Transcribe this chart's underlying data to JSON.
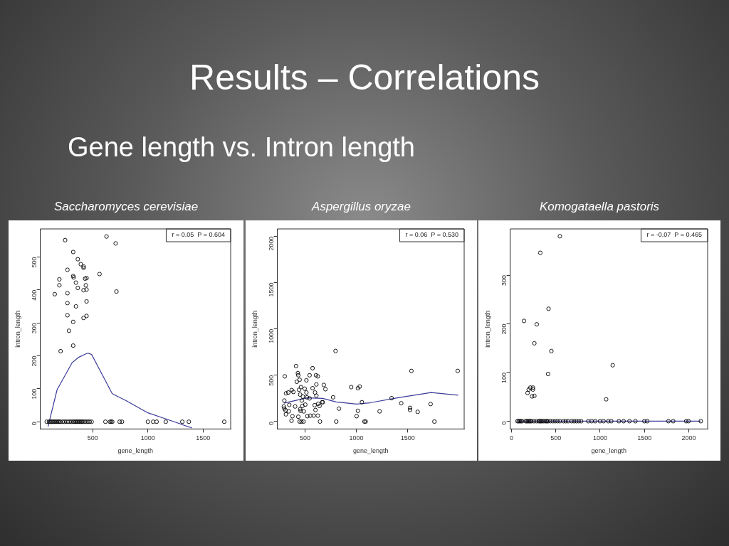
{
  "chart_data": [
    {
      "type": "other",
      "title": "Results – Correlations",
      "subtitle": "Gene length vs. Intron length"
    },
    {
      "type": "scatter",
      "title": "Saccharomyces cerevisiae",
      "xlabel": "gene_length",
      "ylabel": "intron_length",
      "xlim": [
        25,
        1750
      ],
      "ylim": [
        -22,
        585
      ],
      "xticks": [
        500,
        1000,
        1500
      ],
      "yticks": [
        0,
        100,
        200,
        300,
        400,
        500
      ],
      "grid": false,
      "annotations": [
        "r = 0.05  P = 0.604"
      ],
      "series": [
        {
          "type": "scatter",
          "color": "#000000",
          "marker": "circle",
          "x": [
            250,
            625,
            708,
            323,
            365,
            392,
            417,
            417,
            271,
            562,
            323,
            327,
            198,
            444,
            431,
            198,
            348,
            438,
            156,
            271,
            365,
            417,
            444,
            715,
            271,
            444,
            348,
            271,
            444,
            417,
            323,
            285,
            323,
            209,
            83,
            104,
            115,
            125,
            135,
            146,
            156,
            167,
            177,
            188,
            198,
            208,
            229,
            244,
            260,
            277,
            292,
            306,
            323,
            333,
            344,
            354,
            365,
            375,
            385,
            396,
            406,
            417,
            431,
            444,
            458,
            473,
            490,
            615,
            656,
            667,
            677,
            744,
            765,
            1000,
            1048,
            1079,
            1162,
            1312,
            1371,
            1692
          ],
          "values": [
            551,
            562,
            541,
            515,
            493,
            478,
            471,
            467,
            461,
            448,
            442,
            438,
            432,
            436,
            434,
            414,
            422,
            414,
            387,
            390,
            406,
            399,
            401,
            395,
            360,
            365,
            350,
            323,
            321,
            315,
            303,
            276,
            231,
            214,
            0,
            0,
            0,
            0,
            0,
            0,
            0,
            0,
            0,
            0,
            0,
            0,
            0,
            0,
            0,
            0,
            0,
            0,
            0,
            0,
            0,
            0,
            0,
            0,
            0,
            0,
            0,
            0,
            0,
            0,
            0,
            0,
            0,
            0,
            0,
            0,
            0,
            0,
            0,
            0,
            0,
            0,
            0,
            0,
            0,
            0
          ]
        },
        {
          "type": "line",
          "color": "#3a3a9a",
          "marker": "none",
          "x": [
            95,
            177,
            313,
            375,
            438,
            458,
            490,
            594,
            677,
            802,
            1000,
            1177,
            1400
          ],
          "values": [
            -15,
            97,
            179,
            196,
            206,
            208,
            204,
            138,
            85,
            64,
            27,
            7,
            -19
          ]
        }
      ]
    },
    {
      "type": "scatter",
      "title": "Aspergillus oryzae",
      "xlabel": "gene_length",
      "ylabel": "intron_length",
      "xlim": [
        230,
        2050
      ],
      "ylim": [
        -80,
        2080
      ],
      "xticks": [
        500,
        1000,
        1500
      ],
      "yticks": [
        0,
        500,
        1000,
        1500,
        2000
      ],
      "grid": false,
      "annotations": [
        "r = 0.06  P = 0.530"
      ],
      "series": [
        {
          "type": "scatter",
          "color": "#000000",
          "marker": "circle",
          "x": [
            302,
            298,
            293,
            298,
            309,
            315,
            337,
            341,
            346,
            313,
            370,
            368,
            377,
            386,
            403,
            412,
            419,
            430,
            434,
            434,
            441,
            447,
            452,
            452,
            456,
            460,
            447,
            465,
            469,
            474,
            478,
            485,
            487,
            496,
            502,
            513,
            513,
            518,
            522,
            544,
            544,
            551,
            573,
            573,
            584,
            593,
            597,
            601,
            606,
            610,
            610,
            624,
            624,
            628,
            641,
            645,
            667,
            672,
            683,
            698,
            773,
            797,
            804,
            830,
            949,
            1015,
            1002,
            1015,
            1032,
            1054,
            1079,
            1090,
            1226,
            1343,
            1437,
            1523,
            1523,
            1536,
            1597,
            1723,
            1760,
            1987
          ],
          "values": [
            488,
            227,
            163,
            140,
            122,
            305,
            314,
            110,
            180,
            78,
            340,
            9,
            58,
            320,
            163,
            599,
            430,
            523,
            500,
            52,
            343,
            451,
            291,
            134,
            116,
            372,
            0,
            0,
            227,
            169,
            270,
            0,
            110,
            355,
            183,
            445,
            314,
            262,
            58,
            500,
            250,
            64,
            576,
            360,
            64,
            177,
            314,
            125,
            500,
            401,
            279,
            64,
            488,
            192,
            169,
            0,
            209,
            209,
            395,
            349,
            262,
            762,
            0,
            140,
            372,
            116,
            58,
            360,
            378,
            209,
            0,
            0,
            110,
            253,
            198,
            148,
            125,
            547,
            105,
            189,
            0,
            547
          ]
        },
        {
          "type": "line",
          "color": "#3a3a9a",
          "marker": "none",
          "x": [
            293,
            518,
            672,
            804,
            1002,
            1134,
            1398,
            1728,
            1992
          ],
          "values": [
            198,
            256,
            250,
            212,
            189,
            203,
            256,
            314,
            285
          ]
        }
      ]
    },
    {
      "type": "scatter",
      "title": "Komogataella pastoris",
      "xlabel": "gene_length",
      "ylabel": "intron_length",
      "xlim": [
        -15,
        2213
      ],
      "ylim": [
        -16,
        395
      ],
      "xticks": [
        0,
        500,
        1000,
        1500,
        2000
      ],
      "yticks": [
        0,
        100,
        200,
        300
      ],
      "grid": false,
      "annotations": [
        "r = -0.07  P = 0.465"
      ],
      "series": [
        {
          "type": "scatter",
          "color": "#000000",
          "marker": "circle",
          "x": [
            546,
            325,
            418,
            141,
            285,
            258,
            450,
            1142,
            413,
            213,
            242,
            194,
            242,
            181,
            232,
            258,
            1068,
            67,
            80,
            93,
            107,
            120,
            160,
            173,
            186,
            200,
            213,
            226,
            253,
            280,
            306,
            320,
            333,
            346,
            365,
            386,
            399,
            413,
            439,
            466,
            493,
            519,
            546,
            586,
            612,
            639,
            679,
            706,
            732,
            759,
            786,
            866,
            905,
            945,
            999,
            1039,
            1092,
            1126,
            1212,
            1265,
            1331,
            1398,
            1499,
            1531,
            1771,
            1824,
            1971,
            1997,
            2136
          ],
          "values": [
            380,
            346,
            231,
            206,
            199,
            160,
            144,
            115,
            97,
            69,
            69,
            65,
            65,
            58,
            51,
            52,
            45,
            0,
            0,
            0,
            0,
            0,
            0,
            0,
            0,
            0,
            0,
            0,
            0,
            0,
            0,
            0,
            0,
            0,
            0,
            0,
            0,
            0,
            0,
            0,
            0,
            0,
            0,
            0,
            0,
            0,
            0,
            0,
            0,
            0,
            0,
            0,
            0,
            0,
            0,
            0,
            0,
            0,
            0,
            0,
            0,
            0,
            0,
            0,
            0,
            0,
            0,
            0,
            0
          ]
        },
        {
          "type": "line",
          "color": "#3a3a9a",
          "marker": "none",
          "x": [
            67,
            2136
          ],
          "values": [
            0,
            0
          ]
        }
      ]
    }
  ]
}
